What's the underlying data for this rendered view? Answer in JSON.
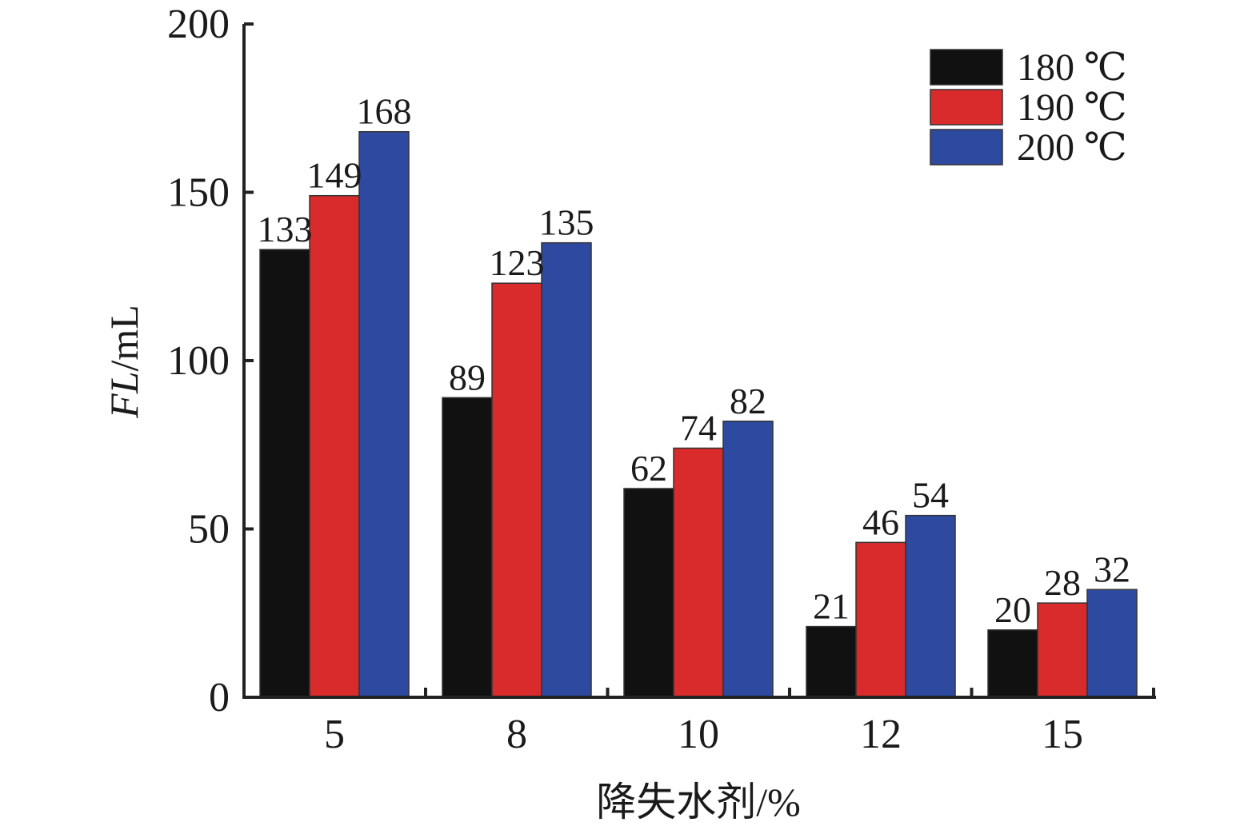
{
  "chart_data": {
    "type": "bar",
    "categories": [
      "5",
      "8",
      "10",
      "12",
      "15"
    ],
    "series": [
      {
        "name": "180 ℃",
        "color": "#111111",
        "values": [
          133,
          89,
          62,
          21,
          20
        ]
      },
      {
        "name": "190 ℃",
        "color": "#d92b2b",
        "values": [
          149,
          123,
          74,
          46,
          28
        ]
      },
      {
        "name": "200 ℃",
        "color": "#2e4aa0",
        "values": [
          168,
          135,
          82,
          54,
          32
        ]
      }
    ],
    "xlabel": "降失水剂/%",
    "ylabel_italic": "FL",
    "ylabel_unit": "/mL",
    "ylim": [
      0,
      200
    ],
    "yticks": [
      0,
      50,
      100,
      150,
      200
    ],
    "data_labels": true,
    "legend_position": "top-right",
    "grid": false
  }
}
